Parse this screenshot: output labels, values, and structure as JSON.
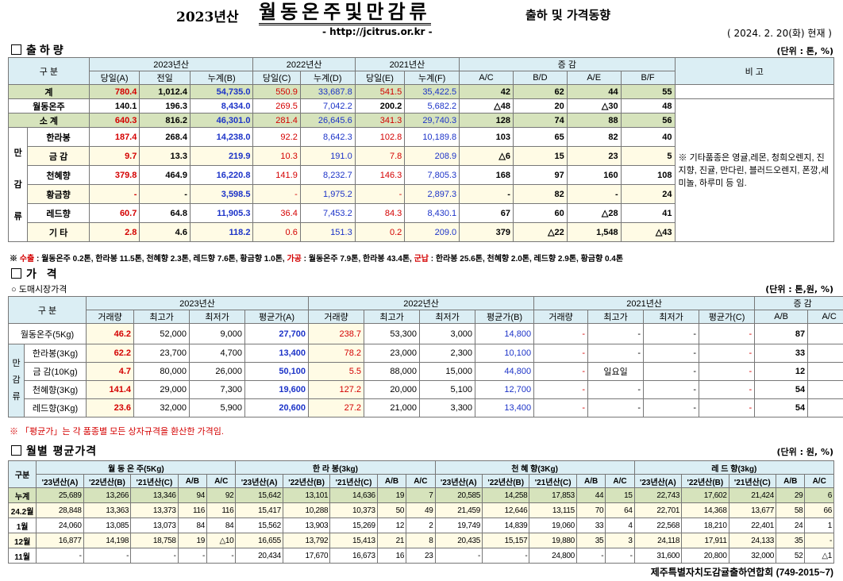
{
  "header": {
    "year": "2023년산",
    "title": "월동온주및만감류",
    "subtitle": "출하 및 가격동향",
    "url": "- http://jcitrus.or.kr -",
    "date": "( 2024.  2. 20(화) 현재 )"
  },
  "shipment": {
    "section_title": "출하량",
    "unit": "(단위 : 톤, %)",
    "headers": {
      "category": "구   분",
      "y2023": "2023년산",
      "y2022": "2022년산",
      "y2021": "2021년산",
      "change": "증   감",
      "remark": "비 고",
      "sub": [
        "당일(A)",
        "전일",
        "누계(B)",
        "당일(C)",
        "누계(D)",
        "당일(E)",
        "누계(F)",
        "A/C",
        "B/D",
        "A/E",
        "B/F"
      ]
    },
    "group_label": [
      "만",
      "감",
      "류"
    ],
    "remark": "※ 기타품종은 영귤,레몬, 청희오렌지, 진지향, 진귤, 만다린, 블러드오렌지, 폰깡,세미놀, 하루미 등 임.",
    "rows": [
      {
        "label": "계",
        "vals": [
          "780.4",
          "1,012.4",
          "54,735.0",
          "550.9",
          "33,687.8",
          "541.5",
          "35,422.5",
          "42",
          "62",
          "44",
          "55"
        ]
      },
      {
        "label": "월동온주",
        "vals": [
          "140.1",
          "196.3",
          "8,434.0",
          "269.5",
          "7,042.2",
          "200.2",
          "5,682.2",
          "△48",
          "20",
          "△30",
          "48"
        ]
      },
      {
        "label": "소   계",
        "vals": [
          "640.3",
          "816.2",
          "46,301.0",
          "281.4",
          "26,645.6",
          "341.3",
          "29,740.3",
          "128",
          "74",
          "88",
          "56"
        ]
      },
      {
        "label": "한라봉",
        "vals": [
          "187.4",
          "268.4",
          "14,238.0",
          "92.2",
          "8,642.3",
          "102.8",
          "10,189.8",
          "103",
          "65",
          "82",
          "40"
        ]
      },
      {
        "label": "금   감",
        "vals": [
          "9.7",
          "13.3",
          "219.9",
          "10.3",
          "191.0",
          "7.8",
          "208.9",
          "△6",
          "15",
          "23",
          "5"
        ]
      },
      {
        "label": "천혜향",
        "vals": [
          "379.8",
          "464.9",
          "16,220.8",
          "141.9",
          "8,232.7",
          "146.3",
          "7,805.3",
          "168",
          "97",
          "160",
          "108"
        ]
      },
      {
        "label": "황금향",
        "vals": [
          "-",
          "-",
          "3,598.5",
          "-",
          "1,975.2",
          "-",
          "2,897.3",
          "-",
          "82",
          "-",
          "24"
        ]
      },
      {
        "label": "레드향",
        "vals": [
          "60.7",
          "64.8",
          "11,905.3",
          "36.4",
          "7,453.2",
          "84.3",
          "8,430.1",
          "67",
          "60",
          "△28",
          "41"
        ]
      },
      {
        "label": "기   타",
        "vals": [
          "2.8",
          "4.6",
          "118.2",
          "0.6",
          "151.3",
          "0.2",
          "209.0",
          "379",
          "△22",
          "1,548",
          "△43"
        ]
      }
    ],
    "footnote": {
      "p1": "※ ",
      "export_label": "수출",
      "export_text": " : 월동온주 0.2톤, 한라봉 11.5톤, 천혜향 2.3톤, 레드향 7.6톤, 황금향 1.0톤, ",
      "process_label": "가공",
      "process_text": " : 월동온주 7.9톤, 한라봉 43.4톤, ",
      "military_label": "군납",
      "military_text": " : 한라봉 25.6톤, 천혜향 2.0톤, 레드향 2.9톤, 황금향 0.4톤"
    }
  },
  "price": {
    "section_title": "가   격",
    "sub_title": "○ 도매시장가격",
    "unit": "(단위 : 톤,원, %)",
    "headers": {
      "category": "구   분",
      "y2023": "2023년산",
      "y2022": "2022년산",
      "y2021": "2021년산",
      "change": "증   감",
      "sub2023": [
        "거래량",
        "최고가",
        "최저가",
        "평균가(A)"
      ],
      "sub2022": [
        "거래량",
        "최고가",
        "최저가",
        "평균가(B)"
      ],
      "sub2021": [
        "거래량",
        "최고가",
        "최저가",
        "평균가(C)"
      ],
      "subchg": [
        "A/B",
        "A/C"
      ]
    },
    "group_label": [
      "만",
      "감",
      "류"
    ],
    "rows": [
      {
        "label": "월동온주(5Kg)",
        "vals": [
          "46.2",
          "52,000",
          "9,000",
          "27,700",
          "238.7",
          "53,300",
          "3,000",
          "14,800",
          "-",
          "-",
          "-",
          "-",
          "87",
          "-"
        ]
      },
      {
        "label": "한라봉(3Kg)",
        "vals": [
          "62.2",
          "23,700",
          "4,700",
          "13,400",
          "78.2",
          "23,000",
          "2,300",
          "10,100",
          "-",
          "-",
          "-",
          "-",
          "33",
          "-"
        ]
      },
      {
        "label": "금 감(10Kg)",
        "vals": [
          "4.7",
          "80,000",
          "26,000",
          "50,100",
          "5.5",
          "88,000",
          "15,000",
          "44,800",
          "-",
          "일요일",
          "-",
          "-",
          "12",
          "-"
        ]
      },
      {
        "label": "천혜향(3Kg)",
        "vals": [
          "141.4",
          "29,000",
          "7,300",
          "19,600",
          "127.2",
          "20,000",
          "5,100",
          "12,700",
          "-",
          "-",
          "-",
          "-",
          "54",
          "-"
        ]
      },
      {
        "label": "레드향(3Kg)",
        "vals": [
          "23.6",
          "32,000",
          "5,900",
          "20,600",
          "27.2",
          "21,000",
          "3,300",
          "13,400",
          "-",
          "-",
          "-",
          "-",
          "54",
          "-"
        ]
      }
    ],
    "footnote": "※ 「평균가」는 각 품종별 모든 상자규격을 환산한 가격임."
  },
  "monthly": {
    "section_title": "월별 평균가격",
    "unit": "(단위 : 원, %)",
    "headers": {
      "category": "구분",
      "groups": [
        "월 동 온 주(5Kg)",
        "한 라 봉(3kg)",
        "천 혜 향(3Kg)",
        "레 드 향(3kg)"
      ],
      "sub": [
        "'23년산(A)",
        "'22년산(B)",
        "'21년산(C)",
        "A/B",
        "A/C"
      ]
    },
    "rows": [
      {
        "label": "누계",
        "vals": [
          "25,689",
          "13,266",
          "13,346",
          "94",
          "92",
          "15,642",
          "13,101",
          "14,636",
          "19",
          "7",
          "20,585",
          "14,258",
          "17,853",
          "44",
          "15",
          "22,743",
          "17,602",
          "21,424",
          "29",
          "6"
        ]
      },
      {
        "label": "24.2월",
        "vals": [
          "28,848",
          "13,363",
          "13,373",
          "116",
          "116",
          "15,417",
          "10,288",
          "10,373",
          "50",
          "49",
          "21,459",
          "12,646",
          "13,115",
          "70",
          "64",
          "22,701",
          "14,368",
          "13,677",
          "58",
          "66"
        ]
      },
      {
        "label": "1월",
        "vals": [
          "24,060",
          "13,085",
          "13,073",
          "84",
          "84",
          "15,562",
          "13,903",
          "15,269",
          "12",
          "2",
          "19,749",
          "14,839",
          "19,060",
          "33",
          "4",
          "22,568",
          "18,210",
          "22,401",
          "24",
          "1"
        ]
      },
      {
        "label": "12월",
        "vals": [
          "16,877",
          "14,198",
          "18,758",
          "19",
          "△10",
          "16,655",
          "13,792",
          "15,413",
          "21",
          "8",
          "20,435",
          "15,157",
          "19,880",
          "35",
          "3",
          "24,118",
          "17,911",
          "24,133",
          "35",
          "-"
        ]
      },
      {
        "label": "11월",
        "vals": [
          "-",
          "-",
          "-",
          "-",
          "-",
          "20,434",
          "17,670",
          "16,673",
          "16",
          "23",
          "-",
          "-",
          "24,800",
          "-",
          "-",
          "31,600",
          "20,800",
          "32,000",
          "52",
          "△1"
        ]
      }
    ]
  },
  "footer": "제주특별자치도감귤출하연합회 (749-2015~7)",
  "colors": {
    "red": "#d40000",
    "blue": "#1c33c8",
    "header_bg": "#dbeef4",
    "total_bg": "#d6e3bc",
    "highlight_bg": "#fffbe5"
  }
}
